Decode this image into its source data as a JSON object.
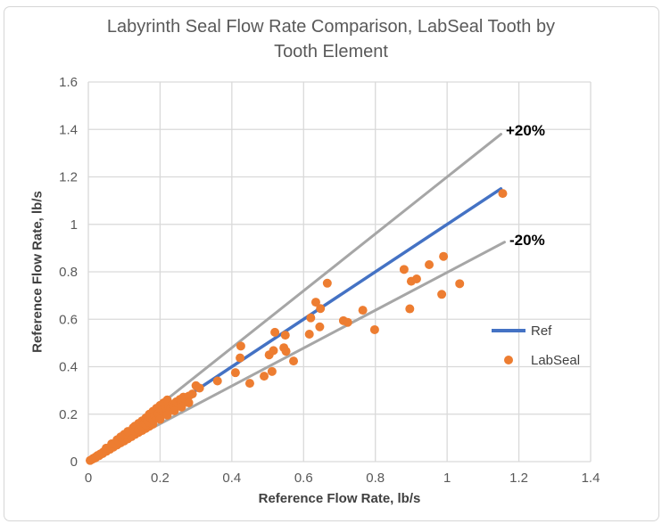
{
  "window": {
    "background": "#ffffff",
    "border_color": "#d6d6d6"
  },
  "colors": {
    "accent_blue": "#4472C4",
    "accent_orange": "#ED7D31",
    "line_gray": "#A6A6A6",
    "gridline": "#D9D9D9",
    "text_gray": "#595959",
    "text_dark": "#404040",
    "annotation_black": "#000000"
  },
  "chart_data": {
    "type": "scatter",
    "title": "Labyrinth Seal Flow Rate Comparison, LabSeal Tooth by Tooth Element",
    "title_lines": [
      "Labyrinth Seal Flow Rate Comparison, LabSeal Tooth by",
      "Tooth Element"
    ],
    "xlabel": "Reference Flow Rate, lb/s",
    "ylabel": "Reference Flow Rate, lb/s",
    "xlim": [
      0,
      1.4
    ],
    "ylim": [
      0,
      1.6
    ],
    "grid": true,
    "x_ticks": [
      {
        "v": 0,
        "label": "0"
      },
      {
        "v": 0.2,
        "label": "0.2"
      },
      {
        "v": 0.4,
        "label": "0.4"
      },
      {
        "v": 0.6,
        "label": "0.6"
      },
      {
        "v": 0.8,
        "label": "0.8"
      },
      {
        "v": 1,
        "label": "1"
      },
      {
        "v": 1.2,
        "label": "1.2"
      },
      {
        "v": 1.4,
        "label": "1.4"
      }
    ],
    "y_ticks": [
      {
        "v": 0,
        "label": "0"
      },
      {
        "v": 0.2,
        "label": "0.2"
      },
      {
        "v": 0.4,
        "label": "0.4"
      },
      {
        "v": 0.6,
        "label": "0.6"
      },
      {
        "v": 0.8,
        "label": "0.8"
      },
      {
        "v": 1,
        "label": "1"
      },
      {
        "v": 1.2,
        "label": "1.2"
      },
      {
        "v": 1.4,
        "label": "1.4"
      },
      {
        "v": 1.6,
        "label": "1.6"
      }
    ],
    "annotations": [
      {
        "text": "+20%",
        "x": 1.17,
        "y": 1.39
      },
      {
        "text": "-20%",
        "x": 1.18,
        "y": 0.93
      }
    ],
    "legend": {
      "position": "inside-right",
      "entries": [
        {
          "label": "Ref",
          "type": "line",
          "color": "#4472C4"
        },
        {
          "label": "LabSeal",
          "type": "marker",
          "color": "#ED7D31"
        }
      ]
    },
    "lines": [
      {
        "id": "ref-line",
        "name": "Ref",
        "color": "#4472C4",
        "width": 3.5,
        "from": [
          0,
          0
        ],
        "to": [
          1.15,
          1.15
        ]
      },
      {
        "id": "plus20-line",
        "name": "+20%",
        "color": "#A6A6A6",
        "width": 3,
        "from": [
          0,
          0
        ],
        "to": [
          1.15,
          1.38
        ]
      },
      {
        "id": "minus20-line",
        "name": "-20%",
        "color": "#A6A6A6",
        "width": 3,
        "from": [
          0,
          0
        ],
        "to": [
          1.16,
          0.925
        ]
      }
    ],
    "series": [
      {
        "name": "LabSeal",
        "color": "#ED7D31",
        "marker_px": 10,
        "points": [
          [
            0.005,
            0.005
          ],
          [
            0.01,
            0.009
          ],
          [
            0.013,
            0.013
          ],
          [
            0.016,
            0.014
          ],
          [
            0.02,
            0.019
          ],
          [
            0.023,
            0.021
          ],
          [
            0.026,
            0.026
          ],
          [
            0.03,
            0.027
          ],
          [
            0.033,
            0.032
          ],
          [
            0.036,
            0.033
          ],
          [
            0.04,
            0.038
          ],
          [
            0.043,
            0.042
          ],
          [
            0.046,
            0.043
          ],
          [
            0.05,
            0.048
          ],
          [
            0.053,
            0.052
          ],
          [
            0.056,
            0.053
          ],
          [
            0.06,
            0.058
          ],
          [
            0.063,
            0.062
          ],
          [
            0.066,
            0.063
          ],
          [
            0.07,
            0.068
          ],
          [
            0.073,
            0.072
          ],
          [
            0.076,
            0.073
          ],
          [
            0.08,
            0.078
          ],
          [
            0.083,
            0.082
          ],
          [
            0.086,
            0.083
          ],
          [
            0.09,
            0.088
          ],
          [
            0.093,
            0.092
          ],
          [
            0.096,
            0.093
          ],
          [
            0.1,
            0.098
          ],
          [
            0.104,
            0.103
          ],
          [
            0.108,
            0.104
          ],
          [
            0.112,
            0.109
          ],
          [
            0.116,
            0.113
          ],
          [
            0.12,
            0.115
          ],
          [
            0.02,
            0.016
          ],
          [
            0.03,
            0.025
          ],
          [
            0.04,
            0.034
          ],
          [
            0.05,
            0.043
          ],
          [
            0.06,
            0.052
          ],
          [
            0.07,
            0.061
          ],
          [
            0.08,
            0.07
          ],
          [
            0.09,
            0.079
          ],
          [
            0.1,
            0.087
          ],
          [
            0.11,
            0.096
          ],
          [
            0.12,
            0.105
          ],
          [
            0.13,
            0.114
          ],
          [
            0.14,
            0.123
          ],
          [
            0.15,
            0.131
          ],
          [
            0.16,
            0.14
          ],
          [
            0.17,
            0.149
          ],
          [
            0.18,
            0.158
          ],
          [
            0.05,
            0.057
          ],
          [
            0.065,
            0.075
          ],
          [
            0.08,
            0.092
          ],
          [
            0.09,
            0.104
          ],
          [
            0.1,
            0.115
          ],
          [
            0.11,
            0.127
          ],
          [
            0.125,
            0.143
          ],
          [
            0.13,
            0.15
          ],
          [
            0.14,
            0.161
          ],
          [
            0.15,
            0.172
          ],
          [
            0.16,
            0.184
          ],
          [
            0.17,
            0.2
          ],
          [
            0.18,
            0.212
          ],
          [
            0.19,
            0.225
          ],
          [
            0.2,
            0.237
          ],
          [
            0.21,
            0.248
          ],
          [
            0.22,
            0.26
          ],
          [
            0.13,
            0.128
          ],
          [
            0.135,
            0.14
          ],
          [
            0.14,
            0.135
          ],
          [
            0.145,
            0.15
          ],
          [
            0.15,
            0.147
          ],
          [
            0.155,
            0.16
          ],
          [
            0.16,
            0.155
          ],
          [
            0.165,
            0.17
          ],
          [
            0.17,
            0.165
          ],
          [
            0.175,
            0.182
          ],
          [
            0.18,
            0.175
          ],
          [
            0.185,
            0.192
          ],
          [
            0.19,
            0.185
          ],
          [
            0.195,
            0.202
          ],
          [
            0.2,
            0.196
          ],
          [
            0.205,
            0.212
          ],
          [
            0.21,
            0.205
          ],
          [
            0.215,
            0.222
          ],
          [
            0.22,
            0.215
          ],
          [
            0.225,
            0.232
          ],
          [
            0.23,
            0.225
          ],
          [
            0.235,
            0.242
          ],
          [
            0.24,
            0.235
          ],
          [
            0.245,
            0.252
          ],
          [
            0.25,
            0.245
          ],
          [
            0.255,
            0.262
          ],
          [
            0.26,
            0.255
          ],
          [
            0.265,
            0.272
          ],
          [
            0.27,
            0.264
          ],
          [
            0.28,
            0.276
          ],
          [
            0.29,
            0.285
          ],
          [
            0.2,
            0.178
          ],
          [
            0.22,
            0.196
          ],
          [
            0.24,
            0.214
          ],
          [
            0.26,
            0.23
          ],
          [
            0.28,
            0.248
          ],
          [
            0.3,
            0.32
          ],
          [
            0.31,
            0.31
          ],
          [
            0.36,
            0.34
          ],
          [
            0.41,
            0.375
          ],
          [
            0.425,
            0.487
          ],
          [
            0.423,
            0.437
          ],
          [
            0.45,
            0.33
          ],
          [
            0.49,
            0.36
          ],
          [
            0.504,
            0.45
          ],
          [
            0.512,
            0.38
          ],
          [
            0.52,
            0.545
          ],
          [
            0.516,
            0.468
          ],
          [
            0.545,
            0.48
          ],
          [
            0.549,
            0.533
          ],
          [
            0.551,
            0.465
          ],
          [
            0.572,
            0.424
          ],
          [
            0.616,
            0.537
          ],
          [
            0.62,
            0.606
          ],
          [
            0.634,
            0.672
          ],
          [
            0.647,
            0.645
          ],
          [
            0.645,
            0.568
          ],
          [
            0.666,
            0.752
          ],
          [
            0.711,
            0.594
          ],
          [
            0.723,
            0.587
          ],
          [
            0.765,
            0.638
          ],
          [
            0.798,
            0.556
          ],
          [
            0.88,
            0.81
          ],
          [
            0.896,
            0.644
          ],
          [
            0.9,
            0.76
          ],
          [
            0.915,
            0.77
          ],
          [
            0.95,
            0.83
          ],
          [
            0.99,
            0.865
          ],
          [
            0.985,
            0.705
          ],
          [
            1.035,
            0.75
          ],
          [
            1.155,
            1.13
          ]
        ]
      }
    ]
  }
}
